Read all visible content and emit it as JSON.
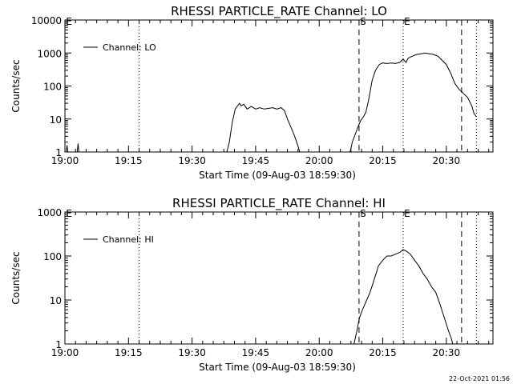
{
  "chart_data": [
    {
      "type": "line",
      "title": "RHESSI PARTICLE_RATE Channel: LO",
      "xlabel": "Start Time (09-Aug-03 18:59:30)",
      "ylabel": "Counts/sec",
      "yscale": "log",
      "ylim": [
        1,
        10000
      ],
      "xlim_minutes": [
        0,
        101
      ],
      "x_ticks": [
        {
          "m": 0,
          "label": "19:00"
        },
        {
          "m": 15,
          "label": "19:15"
        },
        {
          "m": 30,
          "label": "19:30"
        },
        {
          "m": 45,
          "label": "19:45"
        },
        {
          "m": 60,
          "label": "20:00"
        },
        {
          "m": 75,
          "label": "20:15"
        },
        {
          "m": 90,
          "label": "20:30"
        }
      ],
      "y_ticks": [
        {
          "v": 1,
          "label": "1"
        },
        {
          "v": 10,
          "label": "10"
        },
        {
          "v": 100,
          "label": "100"
        },
        {
          "v": 1000,
          "label": "1000"
        },
        {
          "v": 10000,
          "label": "10000"
        }
      ],
      "grid": false,
      "legend": {
        "position": "top-left",
        "entries": [
          "Channel: LO"
        ]
      },
      "markers": [
        {
          "m": 0,
          "label": "E",
          "style": "dotted"
        },
        {
          "m": 17.5,
          "label": "",
          "style": "dotted"
        },
        {
          "m": 69.4,
          "label": "S",
          "style": "dashed"
        },
        {
          "m": 79.8,
          "label": "E",
          "style": "dotted"
        },
        {
          "m": 93.6,
          "label": "",
          "style": "dashed"
        },
        {
          "m": 97.1,
          "label": "",
          "style": "dotted"
        }
      ],
      "series": [
        {
          "name": "Channel: LO",
          "segments": [
            [
              [
                0.3,
                1
              ],
              [
                0.5,
                1.6
              ],
              [
                0.7,
                1
              ],
              [
                1.0,
                1
              ]
            ],
            [
              [
                2.9,
                1
              ],
              [
                3.1,
                1.8
              ],
              [
                3.3,
                1
              ]
            ],
            [
              [
                38.2,
                1
              ],
              [
                38.8,
                2
              ],
              [
                39.5,
                8
              ],
              [
                40.2,
                20
              ],
              [
                41.2,
                30
              ],
              [
                41.6,
                25
              ],
              [
                42.2,
                28
              ],
              [
                43.0,
                20
              ],
              [
                44.0,
                24
              ],
              [
                45.0,
                20
              ],
              [
                46.0,
                22
              ],
              [
                47.0,
                20
              ],
              [
                48.0,
                21
              ],
              [
                49.0,
                22
              ],
              [
                50.0,
                20
              ],
              [
                51.0,
                22
              ],
              [
                51.8,
                18
              ],
              [
                52.5,
                10
              ],
              [
                53.5,
                5
              ],
              [
                54.2,
                3
              ],
              [
                55.0,
                1.5
              ],
              [
                55.4,
                1
              ]
            ],
            [
              [
                67.3,
                1
              ],
              [
                67.8,
                2
              ],
              [
                68.7,
                4
              ],
              [
                69.2,
                6
              ],
              [
                69.8,
                9
              ],
              [
                70.5,
                12
              ],
              [
                71.0,
                16
              ],
              [
                71.7,
                40
              ],
              [
                72.5,
                150
              ],
              [
                73.3,
                300
              ],
              [
                74.2,
                450
              ],
              [
                75.0,
                500
              ],
              [
                76.0,
                480
              ],
              [
                77.0,
                500
              ],
              [
                78.0,
                480
              ],
              [
                79.0,
                520
              ],
              [
                79.8,
                650
              ],
              [
                80.5,
                520
              ],
              [
                81.0,
                700
              ],
              [
                82.0,
                800
              ],
              [
                83.0,
                900
              ],
              [
                84.0,
                950
              ],
              [
                85.0,
                1000
              ],
              [
                86.0,
                950
              ],
              [
                87.0,
                900
              ],
              [
                88.0,
                800
              ],
              [
                89.0,
                600
              ],
              [
                90.0,
                450
              ],
              [
                91.0,
                250
              ],
              [
                92.0,
                120
              ],
              [
                93.0,
                80
              ],
              [
                94.0,
                60
              ],
              [
                95.0,
                45
              ],
              [
                96.0,
                25
              ],
              [
                96.5,
                15
              ],
              [
                97.0,
                12
              ]
            ]
          ]
        }
      ]
    },
    {
      "type": "line",
      "title": "RHESSI PARTICLE_RATE Channel: HI",
      "xlabel": "Start Time (09-Aug-03 18:59:30)",
      "ylabel": "Counts/sec",
      "yscale": "log",
      "ylim": [
        1,
        1000
      ],
      "xlim_minutes": [
        0,
        101
      ],
      "x_ticks": [
        {
          "m": 0,
          "label": "19:00"
        },
        {
          "m": 15,
          "label": "19:15"
        },
        {
          "m": 30,
          "label": "19:30"
        },
        {
          "m": 45,
          "label": "19:45"
        },
        {
          "m": 60,
          "label": "20:00"
        },
        {
          "m": 75,
          "label": "20:15"
        },
        {
          "m": 90,
          "label": "20:30"
        }
      ],
      "y_ticks": [
        {
          "v": 1,
          "label": "1"
        },
        {
          "v": 10,
          "label": "10"
        },
        {
          "v": 100,
          "label": "100"
        },
        {
          "v": 1000,
          "label": "1000"
        }
      ],
      "grid": false,
      "legend": {
        "position": "top-left",
        "entries": [
          "Channel: HI"
        ]
      },
      "markers": [
        {
          "m": 0,
          "label": "E",
          "style": "dotted"
        },
        {
          "m": 17.5,
          "label": "",
          "style": "dotted"
        },
        {
          "m": 69.4,
          "label": "S",
          "style": "dashed"
        },
        {
          "m": 79.8,
          "label": "E",
          "style": "dotted"
        },
        {
          "m": 93.6,
          "label": "",
          "style": "dashed"
        },
        {
          "m": 97.1,
          "label": "",
          "style": "dotted"
        }
      ],
      "series": [
        {
          "name": "Channel: HI",
          "segments": [
            [
              [
                68.2,
                1
              ],
              [
                68.9,
                2
              ],
              [
                69.5,
                4
              ],
              [
                70.2,
                6
              ],
              [
                71.0,
                9
              ],
              [
                72.0,
                15
              ],
              [
                73.0,
                30
              ],
              [
                74.0,
                60
              ],
              [
                75.0,
                80
              ],
              [
                76.0,
                100
              ],
              [
                77.0,
                100
              ],
              [
                78.0,
                110
              ],
              [
                79.0,
                120
              ],
              [
                79.8,
                140
              ],
              [
                80.5,
                130
              ],
              [
                81.5,
                110
              ],
              [
                82.5,
                80
              ],
              [
                83.5,
                60
              ],
              [
                84.5,
                40
              ],
              [
                85.5,
                30
              ],
              [
                86.5,
                20
              ],
              [
                87.5,
                15
              ],
              [
                88.5,
                8
              ],
              [
                89.5,
                4
              ],
              [
                90.5,
                2
              ],
              [
                91.2,
                1.3
              ],
              [
                91.5,
                1
              ]
            ]
          ]
        }
      ]
    }
  ],
  "footer": {
    "timestamp": "22-Oct-2021 01:56"
  }
}
